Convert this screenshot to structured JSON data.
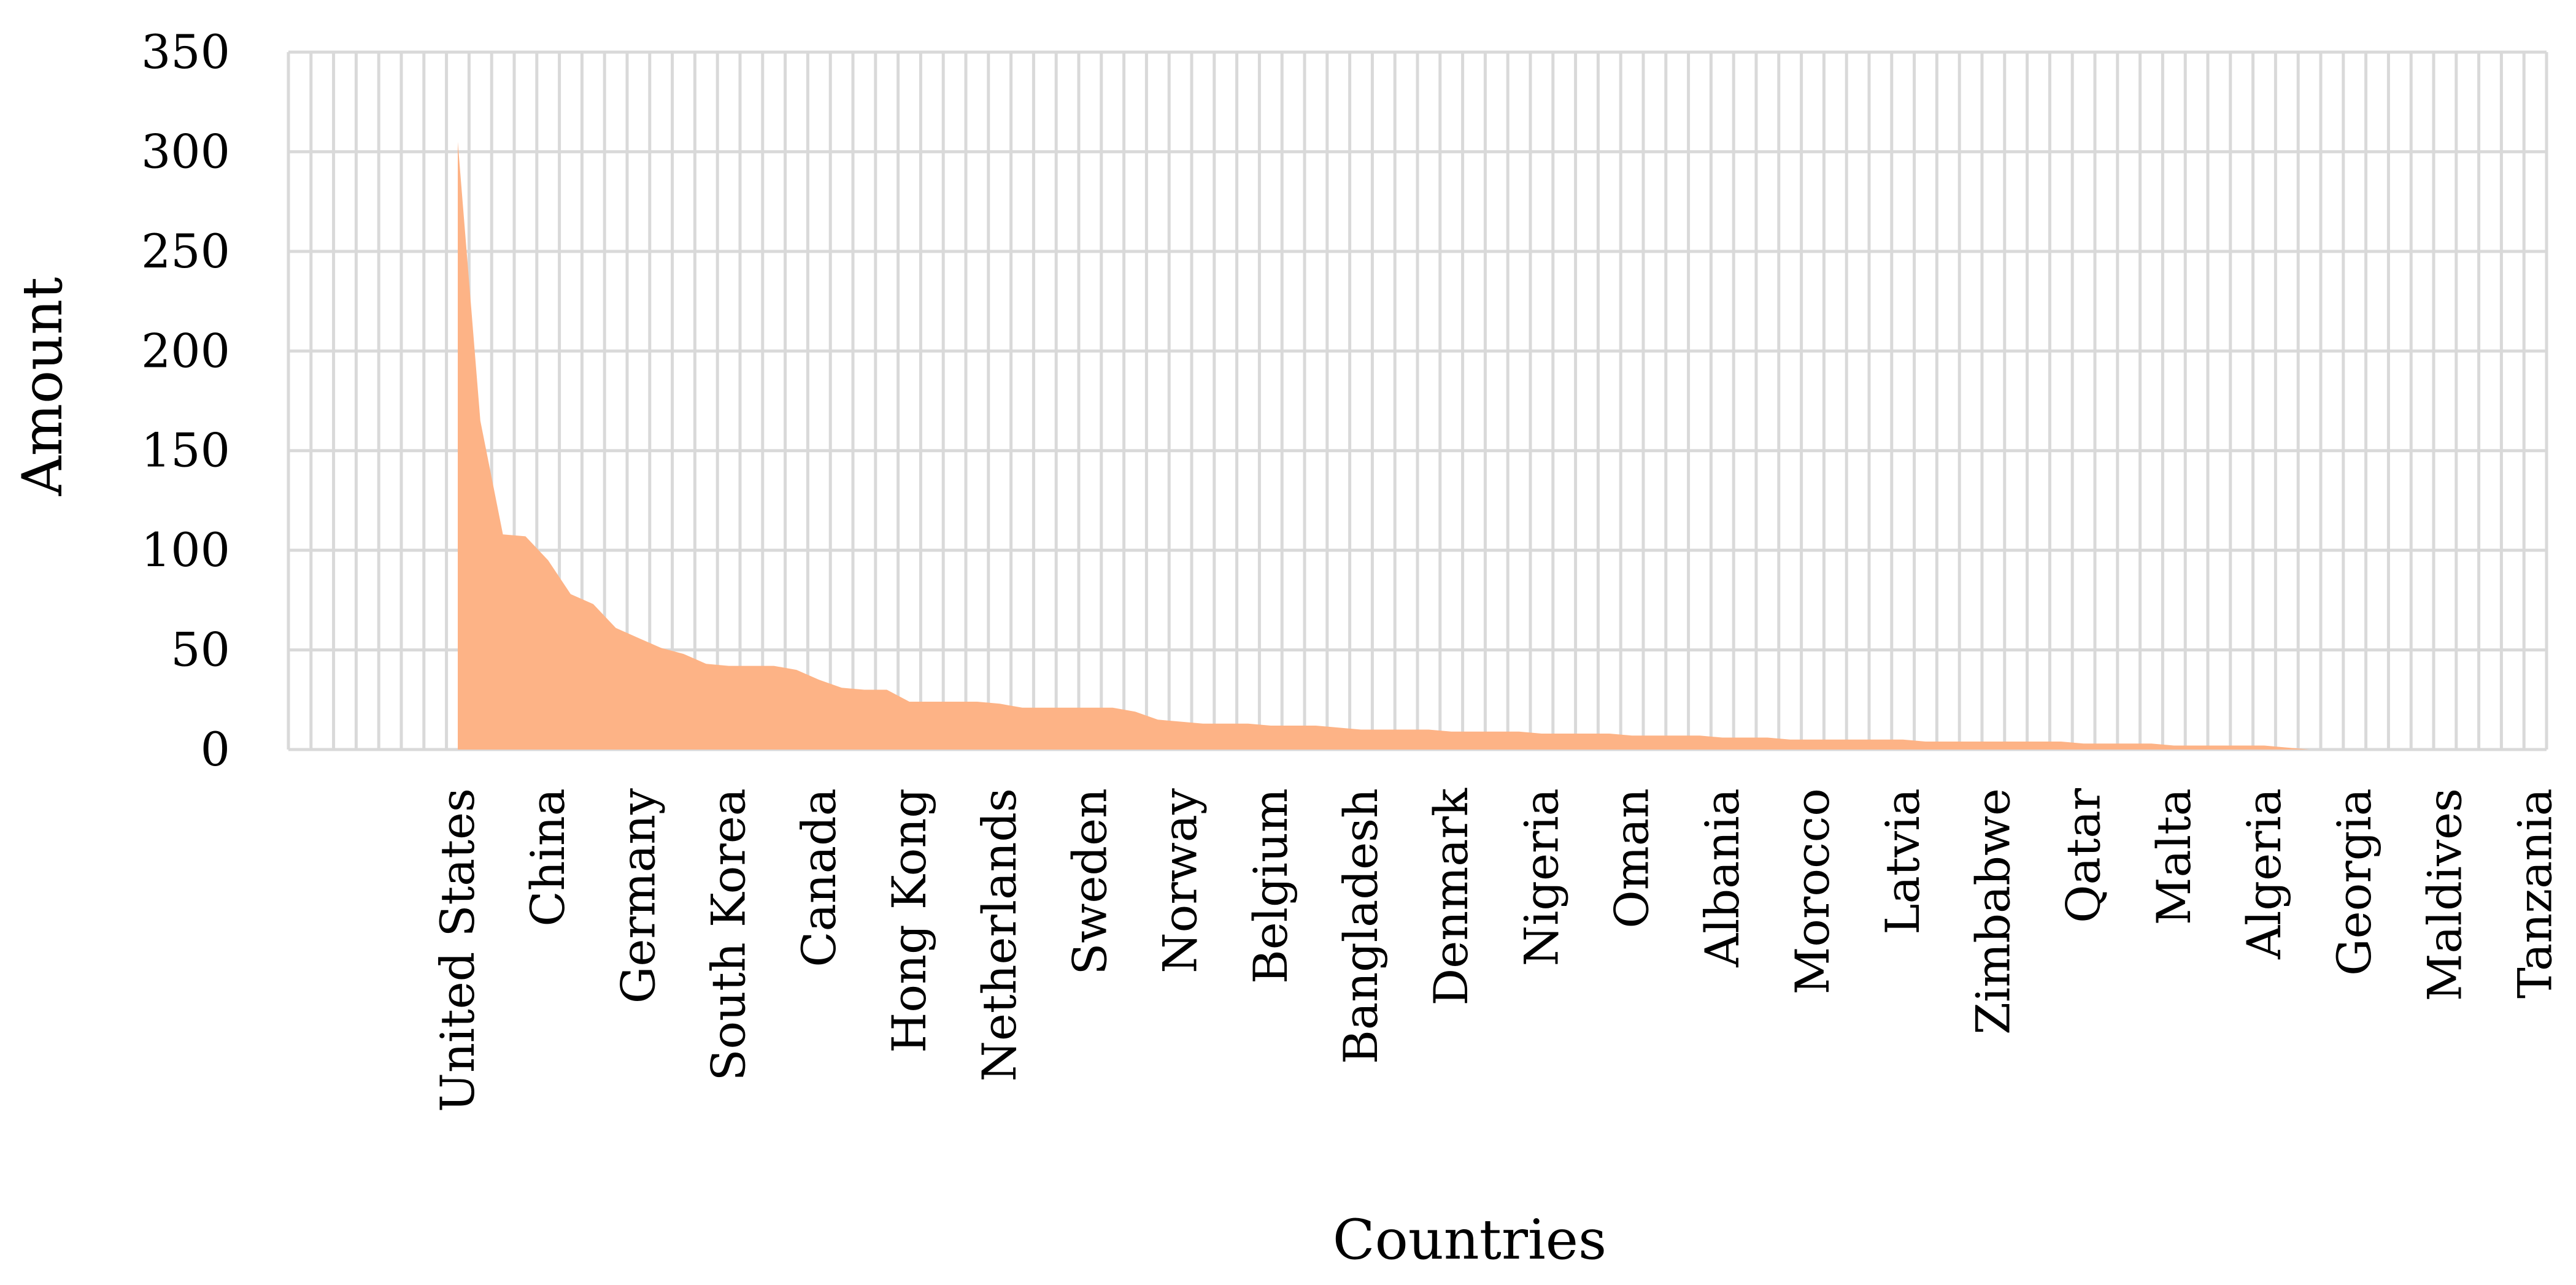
{
  "chart_data": {
    "type": "area",
    "xlabel": "Countries",
    "ylabel": "Amount",
    "ylim": [
      0,
      350
    ],
    "yticks": [
      0,
      50,
      100,
      150,
      200,
      250,
      300,
      350
    ],
    "grid": true,
    "legend": "none",
    "fill_color": "#FDB386",
    "grid_color": "#D9D9D9",
    "category_count": 100,
    "labeled_categories": [
      {
        "index": 8,
        "label": "United States"
      },
      {
        "index": 12,
        "label": "China"
      },
      {
        "index": 16,
        "label": "Germany"
      },
      {
        "index": 20,
        "label": "South Korea"
      },
      {
        "index": 24,
        "label": "Canada"
      },
      {
        "index": 28,
        "label": "Hong Kong"
      },
      {
        "index": 32,
        "label": "Netherlands"
      },
      {
        "index": 36,
        "label": "Sweden"
      },
      {
        "index": 40,
        "label": "Norway"
      },
      {
        "index": 44,
        "label": "Belgium"
      },
      {
        "index": 48,
        "label": "Bangladesh"
      },
      {
        "index": 52,
        "label": "Denmark"
      },
      {
        "index": 56,
        "label": "Nigeria"
      },
      {
        "index": 60,
        "label": "Oman"
      },
      {
        "index": 64,
        "label": "Albania"
      },
      {
        "index": 68,
        "label": "Morocco"
      },
      {
        "index": 72,
        "label": "Latvia"
      },
      {
        "index": 76,
        "label": "Zimbabwe"
      },
      {
        "index": 80,
        "label": "Qatar"
      },
      {
        "index": 84,
        "label": "Malta"
      },
      {
        "index": 88,
        "label": "Algeria"
      },
      {
        "index": 92,
        "label": "Georgia"
      },
      {
        "index": 96,
        "label": "Maldives"
      },
      {
        "index": 100,
        "label": "Tanzania"
      }
    ],
    "series": [
      {
        "start_index": 8,
        "values": [
          305,
          165,
          108,
          107,
          95,
          78,
          73,
          61,
          56,
          51,
          48,
          43,
          42,
          42,
          42,
          40,
          35,
          31,
          30,
          30,
          24,
          24,
          24,
          24,
          23,
          21,
          21,
          21,
          21,
          21,
          19,
          15,
          14,
          13,
          13,
          13,
          12,
          12,
          12,
          11,
          10,
          10,
          10,
          10,
          9,
          9,
          9,
          9,
          8,
          8,
          8,
          8,
          7,
          7,
          7,
          7,
          6,
          6,
          6,
          5,
          5,
          5,
          5,
          5,
          5,
          4,
          4,
          4,
          4,
          4,
          4,
          4,
          3,
          3,
          3,
          3,
          2,
          2,
          2,
          2,
          2,
          1,
          0,
          0,
          0,
          0,
          0,
          0,
          0,
          0,
          0,
          0,
          0
        ]
      }
    ]
  }
}
